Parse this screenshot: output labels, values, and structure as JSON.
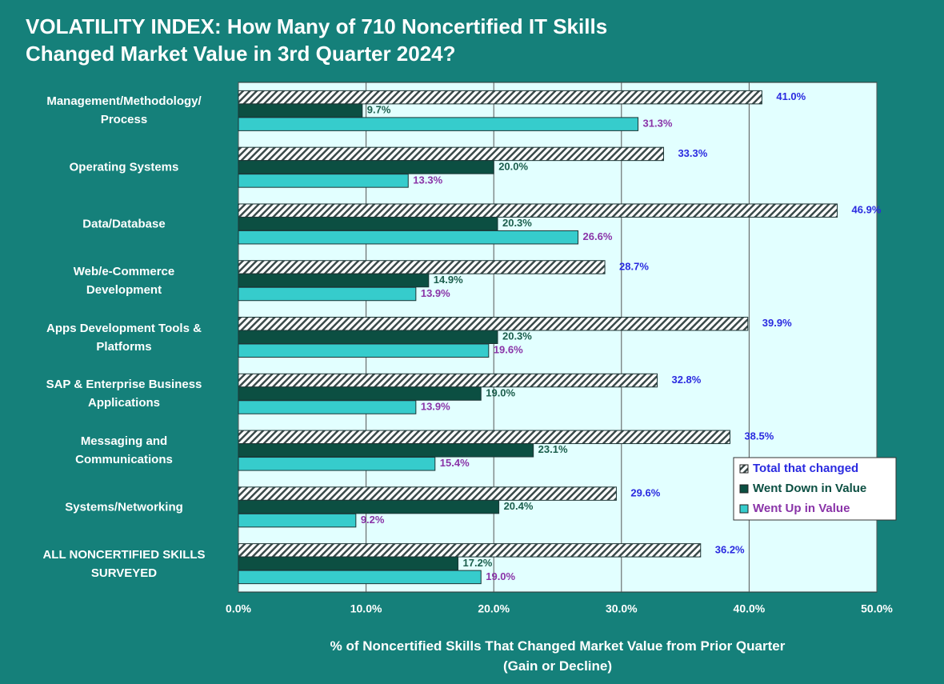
{
  "chart_data": {
    "type": "barh",
    "title": "VOLATILITY INDEX: How Many of 710 Noncertified IT Skills\nChanged Market Value in 3rd Quarter 2024?",
    "x_label": "% of Noncertified Skills That Changed Market Value from Prior Quarter\n(Gain or Decline)",
    "categories": [
      "Management/Methodology/\nProcess",
      "Operating Systems",
      "Data/Database",
      "Web/e-Commerce\nDevelopment",
      "Apps Development Tools &\nPlatforms",
      "SAP & Enterprise Business\nApplications",
      "Messaging and\nCommunications",
      "Systems/Networking",
      "ALL NONCERTIFIED SKILLS\nSURVEYED"
    ],
    "series": [
      {
        "name": "Total that changed",
        "color": "#ffffff",
        "hatch": true,
        "label_color": "#2a2ae0",
        "values": [
          41.0,
          33.3,
          46.9,
          28.7,
          39.9,
          32.8,
          38.5,
          29.6,
          36.2
        ],
        "value_labels": [
          "41.0%",
          "33.3%",
          "46.9%",
          "28.7%",
          "39.9%",
          "32.8%",
          "38.5%",
          "29.6%",
          "36.2%"
        ]
      },
      {
        "name": "Went Down in Value",
        "color": "#0c4f42",
        "label_color": "#1b5e4c",
        "values": [
          9.7,
          20.0,
          20.3,
          14.9,
          20.3,
          19.0,
          23.1,
          20.4,
          17.2
        ],
        "value_labels": [
          "9.7%",
          "20.0%",
          "20.3%",
          "14.9%",
          "20.3%",
          "19.0%",
          "23.1%",
          "20.4%",
          "17.2%"
        ]
      },
      {
        "name": "Went Up in Value",
        "color": "#36cccc",
        "label_color": "#8a34a8",
        "values": [
          31.3,
          13.3,
          26.6,
          13.9,
          19.6,
          13.9,
          15.4,
          9.2,
          19.0
        ],
        "value_labels": [
          "31.3%",
          "13.3%",
          "26.6%",
          "13.9%",
          "19.6%",
          "13.9%",
          "15.4%",
          "9.2%",
          "19.0%"
        ]
      }
    ],
    "xlim": [
      0,
      50
    ],
    "xticks": [
      {
        "value": 0,
        "label": "0.0%"
      },
      {
        "value": 10,
        "label": "10.0%"
      },
      {
        "value": 20,
        "label": "20.0%"
      },
      {
        "value": 30,
        "label": "30.0%"
      },
      {
        "value": 40,
        "label": "40.0%"
      },
      {
        "value": 50,
        "label": "50.0%"
      }
    ],
    "grid": true,
    "legend": "lower right"
  }
}
